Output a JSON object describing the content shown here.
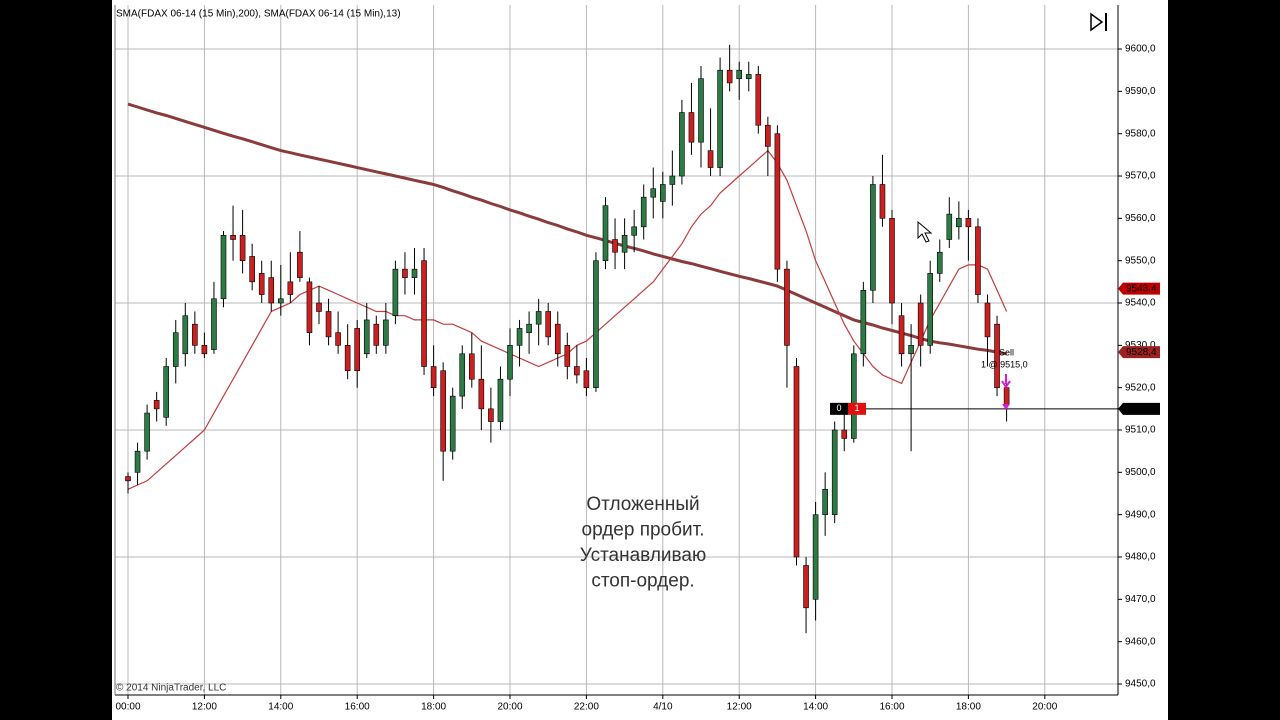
{
  "chart_data": {
    "type": "candlestick",
    "indicators_label": "SMA(FDAX 06-14 (15 Min),200), SMA(FDAX 06-14 (15 Min),13)",
    "copyright": "© 2014 NinjaTrader, LLC",
    "annotation": [
      "Отложенный",
      "ордер пробит.",
      "Устанавливаю",
      "стоп-ордер."
    ],
    "categories": [
      "00:00",
      null,
      null,
      null,
      null,
      null,
      null,
      null,
      "12:00",
      null,
      null,
      null,
      null,
      null,
      null,
      null,
      "14:00",
      null,
      null,
      null,
      null,
      null,
      null,
      null,
      "16:00",
      null,
      null,
      null,
      null,
      null,
      null,
      null,
      "18:00",
      null,
      null,
      null,
      null,
      null,
      null,
      null,
      "20:00",
      null,
      null,
      null,
      null,
      null,
      null,
      null,
      "22:00",
      null,
      null,
      null,
      null,
      null,
      null,
      null,
      "4/10",
      null,
      null,
      null,
      null,
      null,
      null,
      null,
      "12:00",
      null,
      null,
      null,
      null,
      null,
      null,
      null,
      "14:00",
      null,
      null,
      null,
      null,
      null,
      null,
      null,
      "16:00",
      null,
      null,
      null,
      null,
      null,
      null,
      null,
      "18:00",
      null,
      null,
      null,
      null,
      null,
      null,
      null,
      "20:00"
    ],
    "open": [
      9499,
      9500,
      9505,
      9517,
      9513,
      9525,
      9528,
      9535,
      9530,
      9529,
      9541,
      9556,
      9556,
      9551,
      9547,
      9546,
      9540,
      9545,
      9552,
      9545,
      9540,
      9538,
      9533,
      9530,
      9534,
      9528,
      9535,
      9530,
      9537,
      9548,
      9546,
      9550,
      9525,
      9524,
      9505,
      9518,
      9528,
      9522,
      9515,
      9512,
      9522,
      9530,
      9533,
      9535,
      9538,
      9535,
      9530,
      9525,
      9524,
      9520,
      9550,
      9555,
      9552,
      9556,
      9558,
      9565,
      9564,
      9568,
      9570,
      9585,
      9578,
      9576,
      9572,
      9595,
      9593,
      9593,
      9594,
      9582,
      9580,
      9548,
      9525,
      9478,
      9470,
      9490,
      9490,
      9510,
      9508,
      9528,
      9543,
      9568,
      9560,
      9537,
      9528,
      9540,
      9530,
      9547,
      9555,
      9558,
      9560,
      9558,
      9540,
      9535,
      9520,
      null,
      null,
      null,
      null
    ],
    "high": [
      9500,
      9507,
      9516,
      9519,
      9527,
      9536,
      9540,
      9538,
      9533,
      9545,
      9557,
      9563,
      9562,
      9554,
      9550,
      9550,
      9549,
      9552,
      9557,
      9546,
      9544,
      9541,
      9538,
      9535,
      9536,
      9540,
      9537,
      9540,
      9550,
      9552,
      9553,
      9553,
      9530,
      9526,
      9520,
      9530,
      9533,
      9530,
      9520,
      9525,
      9534,
      9536,
      9538,
      9541,
      9540,
      9538,
      9533,
      9530,
      9527,
      9552,
      9565,
      9560,
      9560,
      9562,
      9568,
      9572,
      9571,
      9576,
      9588,
      9592,
      9596,
      9586,
      9598,
      9601,
      9597,
      9597,
      9596,
      9584,
      9582,
      9550,
      9527,
      9480,
      9493,
      9500,
      9512,
      9515,
      9530,
      9545,
      9570,
      9575,
      9562,
      9540,
      9535,
      9542,
      9550,
      9555,
      9565,
      9564,
      9562,
      9560,
      9542,
      9537,
      9522,
      null,
      null,
      null,
      null
    ],
    "low": [
      9495,
      9497,
      9503,
      9512,
      9511,
      9521,
      9525,
      9528,
      9527,
      9528,
      9539,
      9550,
      9547,
      9543,
      9540,
      9538,
      9537,
      9540,
      9545,
      9530,
      9535,
      9530,
      9528,
      9522,
      9520,
      9527,
      9528,
      9528,
      9535,
      9542,
      9542,
      9523,
      9518,
      9498,
      9503,
      9515,
      9520,
      9510,
      9507,
      9510,
      9518,
      9525,
      9528,
      9530,
      9530,
      9525,
      9522,
      9521,
      9518,
      9519,
      9548,
      9548,
      9548,
      9552,
      9555,
      9560,
      9560,
      9563,
      9568,
      9575,
      9572,
      9570,
      9570,
      9590,
      9588,
      9590,
      9580,
      9570,
      9545,
      9520,
      9478,
      9462,
      9465,
      9485,
      9488,
      9505,
      9507,
      9525,
      9540,
      9558,
      9535,
      9525,
      9505,
      9525,
      9528,
      9545,
      9553,
      9555,
      9550,
      9540,
      9525,
      9518,
      9512,
      null,
      null,
      null,
      null
    ],
    "close": [
      9498,
      9505,
      9514,
      9515,
      9525,
      9533,
      9537,
      9530,
      9528,
      9541,
      9556,
      9555,
      9550,
      9545,
      9542,
      9540,
      9541,
      9542,
      9546,
      9533,
      9538,
      9532,
      9530,
      9524,
      9524,
      9536,
      9530,
      9536,
      9548,
      9546,
      9548,
      9525,
      9520,
      9505,
      9518,
      9528,
      9522,
      9515,
      9512,
      9522,
      9530,
      9534,
      9535,
      9538,
      9532,
      9528,
      9525,
      9523,
      9520,
      9550,
      9563,
      9552,
      9556,
      9558,
      9565,
      9567,
      9568,
      9570,
      9585,
      9578,
      9593,
      9572,
      9595,
      9592,
      9595,
      9594,
      9582,
      9577,
      9548,
      9530,
      9480,
      9468,
      9490,
      9496,
      9510,
      9508,
      9528,
      9543,
      9568,
      9560,
      9540,
      9528,
      9530,
      9530,
      9547,
      9552,
      9561,
      9560,
      9558,
      9542,
      9532,
      9520,
      9516,
      null,
      null,
      null,
      null
    ],
    "up_color": "#2e7a45",
    "down_color": "#cc2020",
    "series": [
      {
        "color": "#8b3b3b",
        "values": [
          9587,
          9586.3,
          9585.6,
          9584.9,
          9584.3,
          9583.6,
          9582.9,
          9582.2,
          9581.5,
          9580.8,
          9580.1,
          9579.4,
          9578.8,
          9578.1,
          9577.4,
          9576.7,
          9576,
          9575.5,
          9575,
          9574.5,
          9574,
          9573.5,
          9573,
          9572.5,
          9572,
          9571.5,
          9571,
          9570.5,
          9570,
          9569.5,
          9569,
          9568.5,
          9568,
          9567.3,
          9566.5,
          9565.8,
          9565,
          9564.3,
          9563.5,
          9562.8,
          9562,
          9561.3,
          9560.5,
          9559.8,
          9559,
          9558.3,
          9557.5,
          9556.8,
          9556,
          9555.4,
          9554.8,
          9554.1,
          9553.5,
          9552.9,
          9552.3,
          9551.6,
          9551,
          9550.4,
          9549.8,
          9549.3,
          9548.7,
          9548.1,
          9547.5,
          9546.9,
          9546.3,
          9545.8,
          9545.2,
          9544.6,
          9544,
          9543,
          9542,
          9541,
          9540,
          9539,
          9538,
          9537,
          9536,
          9535.4,
          9534.8,
          9534.1,
          9533.5,
          9532.9,
          9532.3,
          9531.6,
          9531,
          9530.6,
          9530.3,
          9529.9,
          9529.5,
          9529.1,
          9528.8,
          9528.4,
          9528,
          null,
          null,
          null,
          null
        ]
      },
      {
        "color": "#c43c3c",
        "values": [
          9496,
          9497,
          9498,
          9500,
          9502,
          9504,
          9506,
          9508,
          9510,
          9514,
          9518,
          9522,
          9526,
          9530,
          9534,
          9538,
          9539,
          9540,
          9542,
          9543,
          9544,
          9543,
          9542,
          9541,
          9540,
          9539,
          9538,
          9538,
          9537,
          9537,
          9536,
          9536,
          9536,
          9535,
          9535,
          9534,
          9533,
          9531,
          9530,
          9529,
          9528,
          9527,
          9526,
          9525,
          9526,
          9527,
          9528,
          9530,
          9531,
          9533,
          9535,
          9537,
          9539,
          9541,
          9543,
          9545,
          9548,
          9551,
          9554,
          9558,
          9561,
          9563,
          9566,
          9568,
          9570,
          9572,
          9574,
          9576,
          9573,
          9569,
          9563,
          9557,
          9550,
          9545,
          9540,
          9535,
          9531,
          9528,
          9525,
          9523,
          9522,
          9521,
          9526,
          9531,
          9536,
          9540,
          9544,
          9548,
          9549,
          9549,
          9548,
          9543,
          9538,
          null,
          null,
          null,
          null
        ]
      }
    ],
    "ylim": [
      9447.4,
      9610.4
    ],
    "yticks": [
      {
        "value": 9450,
        "label": "9450,0"
      },
      {
        "value": 9460,
        "label": "9460,0"
      },
      {
        "value": 9470,
        "label": "9470,0"
      },
      {
        "value": 9480,
        "label": "9480,0"
      },
      {
        "value": 9490,
        "label": "9490,0"
      },
      {
        "value": 9500,
        "label": "9500,0"
      },
      {
        "value": 9510,
        "label": "9510,0"
      },
      {
        "value": 9520,
        "label": "9520,0"
      },
      {
        "value": 9530,
        "label": "9530,0"
      },
      {
        "value": 9540,
        "label": "9540,0"
      },
      {
        "value": 9550,
        "label": "9550,0"
      },
      {
        "value": 9560,
        "label": "9560,0"
      },
      {
        "value": 9570,
        "label": "9570,0"
      },
      {
        "value": 9580,
        "label": "9580,0"
      },
      {
        "value": 9590,
        "label": "9590,0"
      },
      {
        "value": 9600,
        "label": "9600,0"
      }
    ],
    "price_markers": [
      {
        "value": 9543.4,
        "label": "9543,4",
        "color": "#c00000"
      },
      {
        "value": 9528.4,
        "label": "9528,4",
        "color": "#a02020"
      },
      {
        "value": 9515.0,
        "label": "9515,0",
        "color": "#000000"
      }
    ],
    "order": {
      "price": 9515.0,
      "filled": "0",
      "quantity": "1",
      "action": "Sell",
      "fill_text": "1 @ 9515,0"
    }
  }
}
